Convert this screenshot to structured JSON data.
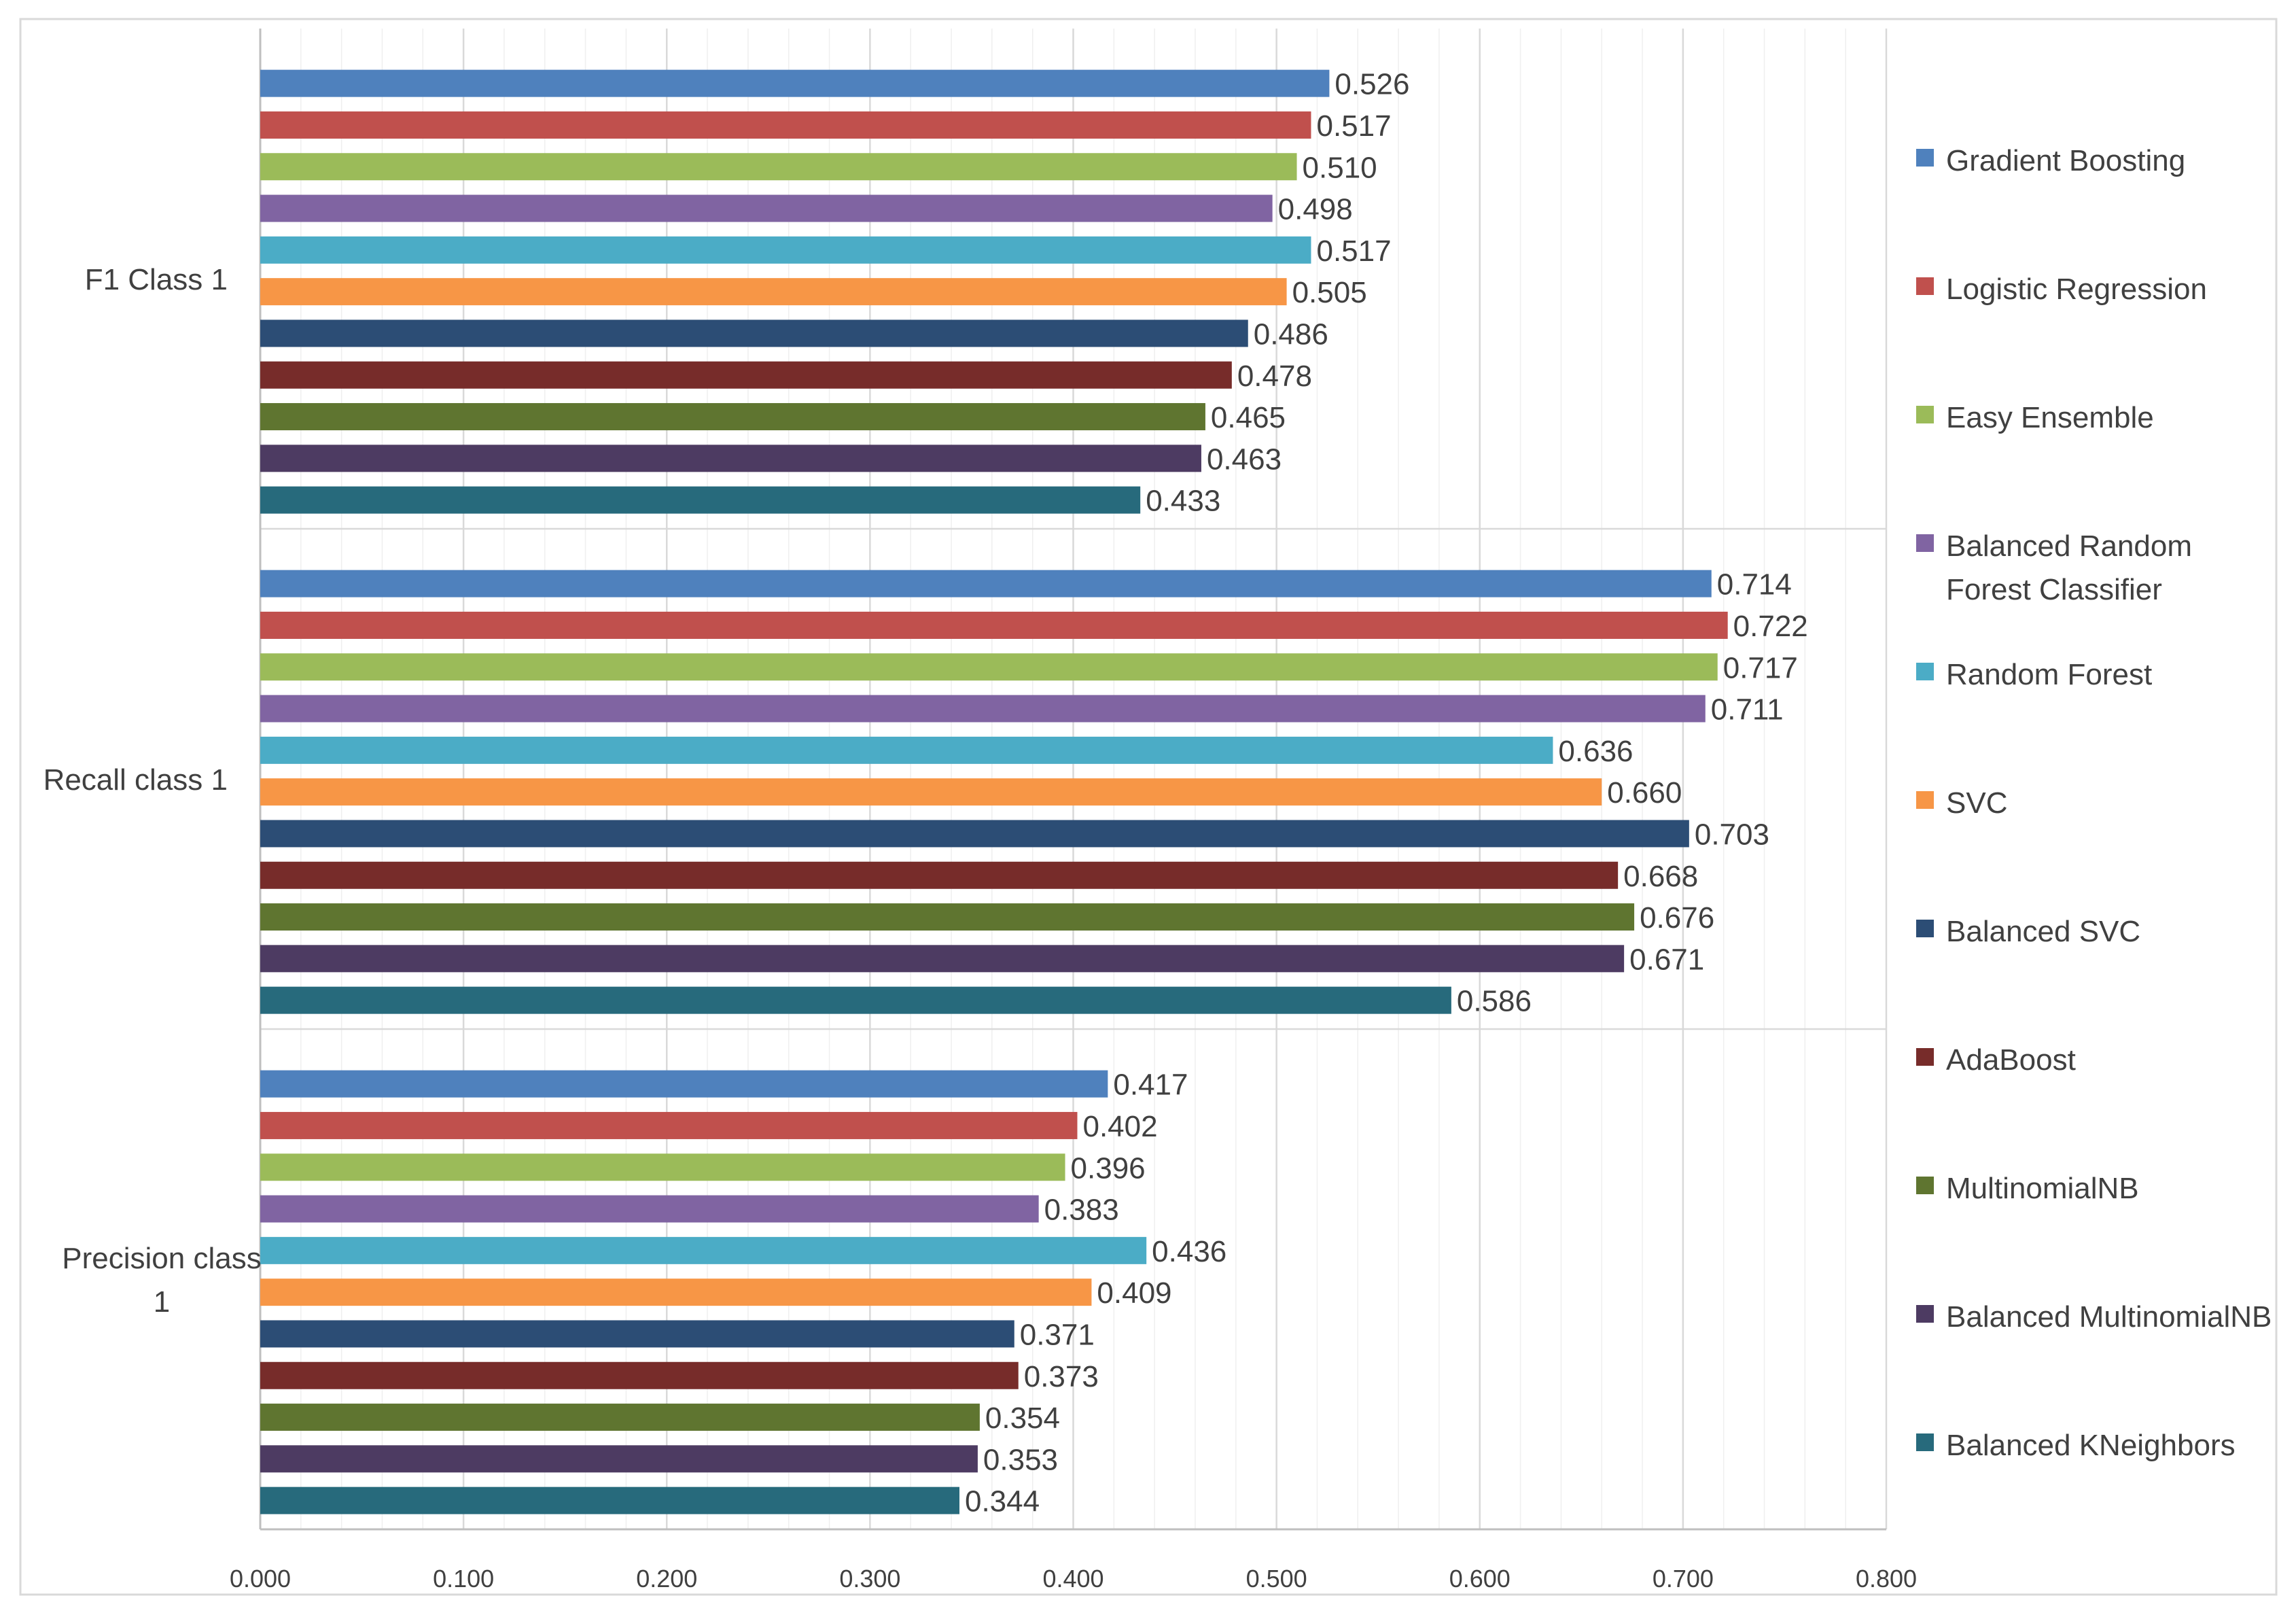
{
  "chart_data": {
    "type": "bar",
    "orientation": "horizontal",
    "categories": [
      "F1 Class 1",
      "Recall class 1",
      "Precision class 1"
    ],
    "series": [
      {
        "name": "Gradient Boosting",
        "color": "#4f81bd",
        "values": [
          0.526,
          0.714,
          0.417
        ]
      },
      {
        "name": "Logistic Regression",
        "color": "#c0504d",
        "values": [
          0.517,
          0.722,
          0.402
        ]
      },
      {
        "name": "Easy Ensemble",
        "color": "#9bbb59",
        "values": [
          0.51,
          0.717,
          0.396
        ]
      },
      {
        "name": "Balanced Random Forest Classifier",
        "color": "#8064a2",
        "values": [
          0.498,
          0.711,
          0.383
        ]
      },
      {
        "name": "Random Forest",
        "color": "#4bacc6",
        "values": [
          0.517,
          0.636,
          0.436
        ]
      },
      {
        "name": "SVC",
        "color": "#f79646",
        "values": [
          0.505,
          0.66,
          0.409
        ]
      },
      {
        "name": "Balanced SVC",
        "color": "#2c4d75",
        "values": [
          0.486,
          0.703,
          0.371
        ]
      },
      {
        "name": "AdaBoost",
        "color": "#772c2a",
        "values": [
          0.478,
          0.668,
          0.373
        ]
      },
      {
        "name": "MultinomialNB",
        "color": "#5f7530",
        "values": [
          0.465,
          0.676,
          0.354
        ]
      },
      {
        "name": "Balanced MultinomialNB",
        "color": "#4d3b62",
        "values": [
          0.463,
          0.671,
          0.353
        ]
      },
      {
        "name": "Balanced KNeighbors",
        "color": "#276a7c",
        "values": [
          0.433,
          0.586,
          0.344
        ]
      }
    ],
    "value_labels": [
      [
        "0.526",
        "0.517",
        "0.510",
        "0.498",
        "0.517",
        "0.505",
        "0.486",
        "0.478",
        "0.465",
        "0.463",
        "0.433"
      ],
      [
        "0.714",
        "0.722",
        "0.717",
        "0.711",
        "0.636",
        "0.660",
        "0.703",
        "0.668",
        "0.676",
        "0.671",
        "0.586"
      ],
      [
        "0.417",
        "0.402",
        "0.396",
        "0.383",
        "0.436",
        "0.409",
        "0.371",
        "0.373",
        "0.354",
        "0.353",
        "0.344"
      ]
    ],
    "x_ticks": [
      "0.000",
      "0.100",
      "0.200",
      "0.300",
      "0.400",
      "0.500",
      "0.600",
      "0.700",
      "0.800"
    ],
    "xlim": [
      0,
      0.8
    ],
    "grid": true,
    "legend_position": "right",
    "title": "",
    "xlabel": "",
    "ylabel": ""
  }
}
